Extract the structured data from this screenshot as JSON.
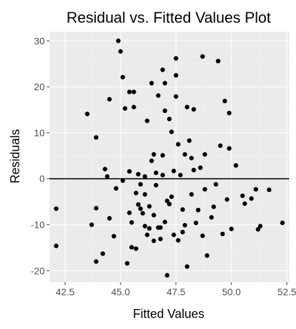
{
  "chart_data": {
    "type": "scatter",
    "title": "Residual vs. Fitted Values Plot",
    "xlabel": "Fitted Values",
    "ylabel": "Residuals",
    "xlim": [
      41.8,
      52.6
    ],
    "ylim": [
      -22.5,
      32.0
    ],
    "x_ticks": [
      42.5,
      45.0,
      47.5,
      50.0,
      52.5
    ],
    "x_tick_labels": [
      "42.5",
      "45.0",
      "47.5",
      "50.0",
      "52.5"
    ],
    "y_ticks": [
      -20,
      -10,
      0,
      10,
      20,
      30
    ],
    "y_tick_labels": [
      "-20",
      "-10",
      "0",
      "10",
      "20",
      "30"
    ],
    "reference_line_y": 0,
    "grid": true,
    "colors": {
      "panel_background": "#ebebeb",
      "grid_major": "#ffffff",
      "grid_minor": "#f5f5f5",
      "point": "#000000",
      "reference_line": "#000000"
    },
    "points": [
      [
        42.1,
        -6.5
      ],
      [
        42.1,
        -14.6
      ],
      [
        43.5,
        14.1
      ],
      [
        43.7,
        -10.0
      ],
      [
        43.9,
        -6.4
      ],
      [
        43.9,
        -18.0
      ],
      [
        43.9,
        9.0
      ],
      [
        44.2,
        -16.3
      ],
      [
        44.3,
        2.1
      ],
      [
        44.4,
        0.5
      ],
      [
        44.5,
        17.3
      ],
      [
        44.5,
        -8.6
      ],
      [
        44.7,
        -12.5
      ],
      [
        44.8,
        -2.1
      ],
      [
        44.9,
        30.0
      ],
      [
        45.0,
        27.7
      ],
      [
        45.1,
        22.1
      ],
      [
        45.1,
        -0.4
      ],
      [
        45.2,
        15.3
      ],
      [
        45.3,
        -18.4
      ],
      [
        45.4,
        18.9
      ],
      [
        45.4,
        1.6
      ],
      [
        45.4,
        -7.4
      ],
      [
        45.5,
        -9.5
      ],
      [
        45.5,
        -14.9
      ],
      [
        45.6,
        18.9
      ],
      [
        45.6,
        15.6
      ],
      [
        45.7,
        -3.1
      ],
      [
        45.7,
        -15.2
      ],
      [
        45.8,
        -5.6
      ],
      [
        45.8,
        1.0
      ],
      [
        45.9,
        -1.2
      ],
      [
        45.9,
        -6.5
      ],
      [
        46.0,
        -7.5
      ],
      [
        46.1,
        -10.3
      ],
      [
        46.1,
        0.5
      ],
      [
        46.1,
        -3.4
      ],
      [
        46.2,
        -12.2
      ],
      [
        46.2,
        12.6
      ],
      [
        46.3,
        -6.0
      ],
      [
        46.3,
        -10.8
      ],
      [
        46.4,
        3.9
      ],
      [
        46.4,
        20.8
      ],
      [
        46.5,
        5.3
      ],
      [
        46.5,
        -7.9
      ],
      [
        46.5,
        -13.5
      ],
      [
        46.6,
        1.3
      ],
      [
        46.6,
        -1.4
      ],
      [
        46.7,
        -10.6
      ],
      [
        46.7,
        18.1
      ],
      [
        46.8,
        -13.1
      ],
      [
        46.8,
        -10.6
      ],
      [
        46.9,
        23.7
      ],
      [
        46.9,
        5.1
      ],
      [
        46.9,
        0.8
      ],
      [
        47.0,
        -9.4
      ],
      [
        47.0,
        20.8
      ],
      [
        47.0,
        14.8
      ],
      [
        47.1,
        -4.8
      ],
      [
        47.1,
        -21.0
      ],
      [
        47.2,
        -5.5
      ],
      [
        47.2,
        13.0
      ],
      [
        47.3,
        10.2
      ],
      [
        47.3,
        -3.9
      ],
      [
        47.4,
        1.7
      ],
      [
        47.4,
        -12.2
      ],
      [
        47.5,
        26.2
      ],
      [
        47.5,
        22.5
      ],
      [
        47.5,
        17.9
      ],
      [
        47.6,
        7.5
      ],
      [
        47.6,
        -13.4
      ],
      [
        47.7,
        0.8
      ],
      [
        47.8,
        -6.7
      ],
      [
        47.8,
        -11.6
      ],
      [
        47.9,
        5.3
      ],
      [
        47.9,
        -10.1
      ],
      [
        48.0,
        15.6
      ],
      [
        48.0,
        -19.1
      ],
      [
        48.1,
        8.3
      ],
      [
        48.2,
        -3.4
      ],
      [
        48.2,
        4.5
      ],
      [
        48.3,
        1.9
      ],
      [
        48.3,
        15.1
      ],
      [
        48.4,
        -9.6
      ],
      [
        48.5,
        -6.8
      ],
      [
        48.6,
        2.4
      ],
      [
        48.7,
        -12.4
      ],
      [
        48.7,
        26.6
      ],
      [
        48.8,
        5.3
      ],
      [
        48.8,
        -2.3
      ],
      [
        48.9,
        -16.7
      ],
      [
        49.1,
        -8.4
      ],
      [
        49.2,
        -6.1
      ],
      [
        49.3,
        -1.2
      ],
      [
        49.4,
        25.6
      ],
      [
        49.5,
        7.2
      ],
      [
        49.6,
        -12.0
      ],
      [
        49.7,
        16.9
      ],
      [
        49.8,
        -4.5
      ],
      [
        49.9,
        14.3
      ],
      [
        49.9,
        6.6
      ],
      [
        50.0,
        -10.9
      ],
      [
        50.2,
        2.9
      ],
      [
        50.5,
        -3.7
      ],
      [
        50.6,
        -5.4
      ],
      [
        50.9,
        -4.3
      ],
      [
        51.1,
        -2.3
      ],
      [
        51.2,
        -11.0
      ],
      [
        51.3,
        -10.3
      ],
      [
        51.7,
        -2.4
      ],
      [
        52.3,
        -9.6
      ]
    ]
  }
}
